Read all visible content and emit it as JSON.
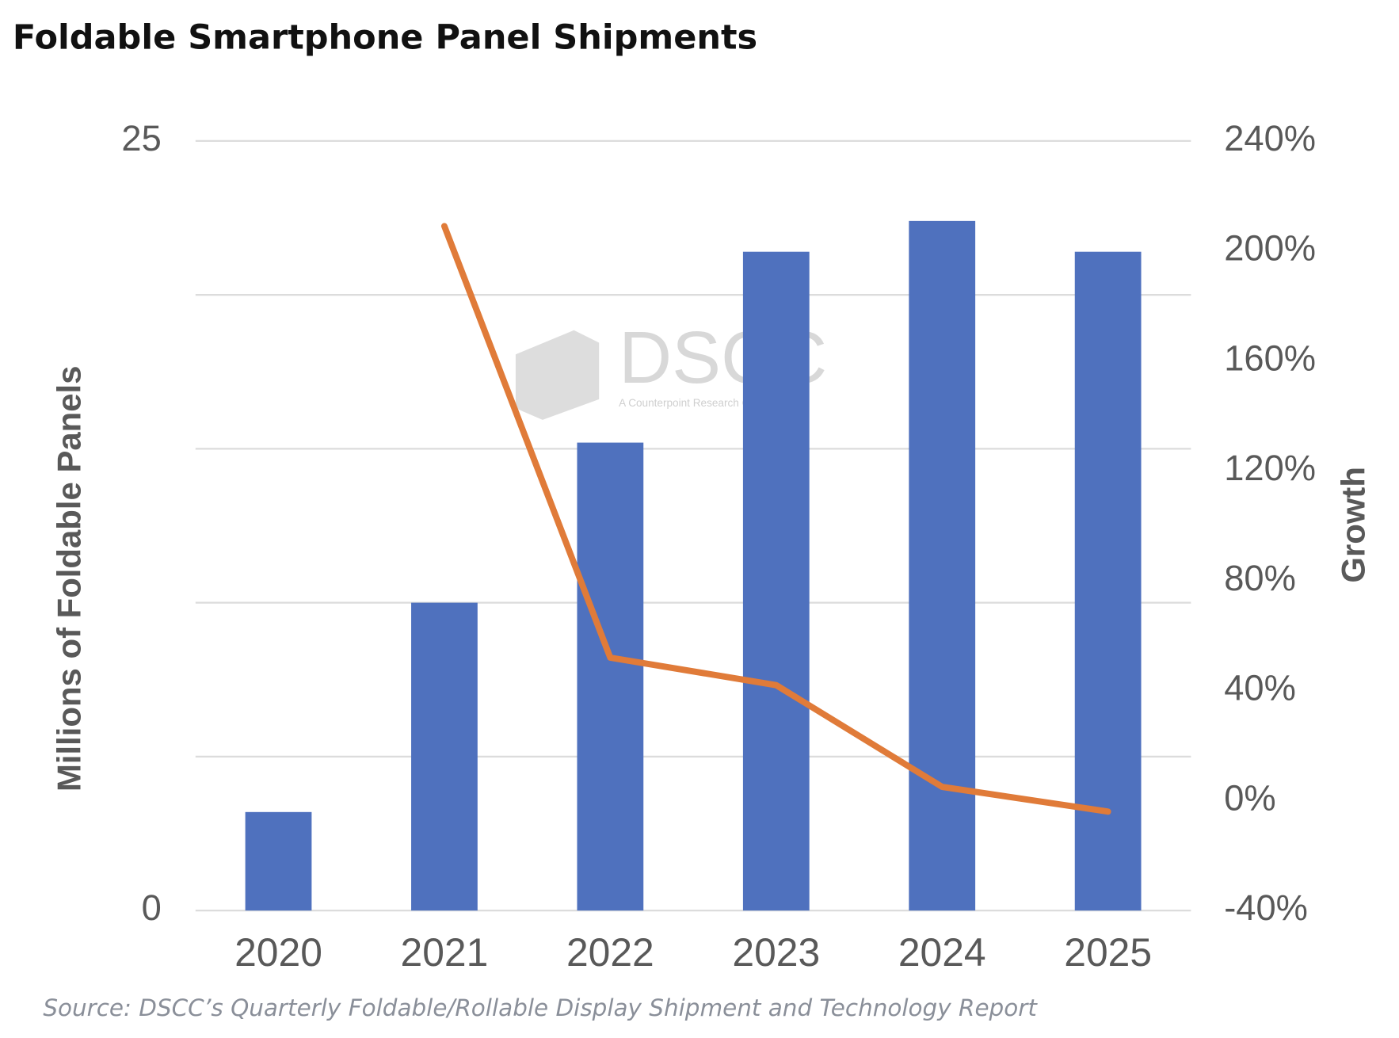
{
  "chart_data": {
    "type": "bar_line",
    "title": "Foldable Smartphone Panel Shipments",
    "y_label": "Millions of Foldable Panels",
    "y2_label": "Growth",
    "source": "Source: DSCC’s Quarterly Foldable/Rollable Display Shipment and Technology Report",
    "watermark": {
      "logo": "DSCC",
      "tagline": "A Counterpoint Research Company"
    },
    "categories": [
      "2020",
      "2021",
      "2022",
      "2023",
      "2024",
      "2025"
    ],
    "series": [
      {
        "name": "Shipments",
        "type": "bar",
        "color": "#4f71be",
        "values": [
          3.2,
          10.0,
          15.2,
          21.4,
          22.4,
          21.4
        ]
      },
      {
        "name": "Growth",
        "type": "line",
        "axis": "y2",
        "color": "#e07b39",
        "values": [
          null,
          209,
          52,
          42,
          5,
          -4
        ]
      }
    ],
    "ylim": [
      0,
      25
    ],
    "yticks": [
      0,
      25
    ],
    "ygrid": [
      0,
      5,
      10,
      15,
      20,
      25
    ],
    "y2lim": [
      -40,
      240
    ],
    "y2ticks": [
      {
        "value": -40,
        "label": "-40%"
      },
      {
        "value": 0,
        "label": "0%"
      },
      {
        "value": 40,
        "label": "40%"
      },
      {
        "value": 80,
        "label": "80%"
      },
      {
        "value": 120,
        "label": "120%"
      },
      {
        "value": 160,
        "label": "160%"
      },
      {
        "value": 200,
        "label": "200%"
      },
      {
        "value": 240,
        "label": "240%"
      }
    ],
    "grid": true
  }
}
